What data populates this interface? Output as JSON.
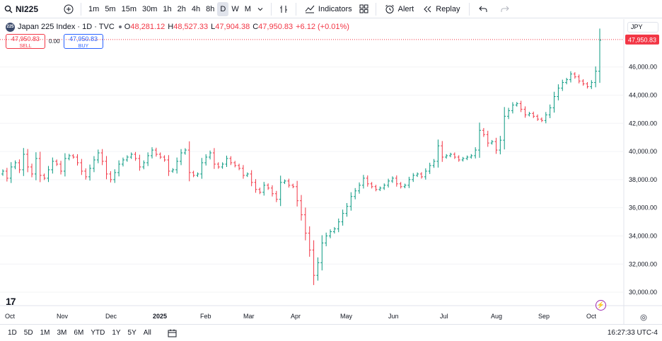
{
  "toolbar": {
    "symbol": "NI225",
    "intervals": [
      "1m",
      "5m",
      "15m",
      "30m",
      "1h",
      "2h",
      "4h",
      "8h",
      "D",
      "W",
      "M"
    ],
    "active_interval": "D",
    "indicators_label": "Indicators",
    "alert_label": "Alert",
    "replay_label": "Replay"
  },
  "legend": {
    "title": "Japan 225 Index · 1D · TVC",
    "logo": "225",
    "o_key": "O",
    "o_val": "48,281.12",
    "h_key": "H",
    "h_val": "48,527.33",
    "l_key": "L",
    "l_val": "47,904.38",
    "c_key": "C",
    "c_val": "47,950.83",
    "change": "+6.12 (+0.01%)"
  },
  "trade": {
    "sell_price": "47,950.83",
    "sell_label": "SELL",
    "buy_price": "47,950.83",
    "buy_label": "BUY",
    "spread": "0.00"
  },
  "currency": "JPY",
  "chart_data": {
    "type": "ohlc",
    "price_axis_labels": [
      "46,000.00",
      "44,000.00",
      "42,000.00",
      "40,000.00",
      "38,000.00",
      "36,000.00",
      "34,000.00",
      "32,000.00",
      "30,000.00"
    ],
    "current_price_label": "47,950.83",
    "current_price": 47950.83,
    "time_axis_labels": [
      "Oct",
      "Nov",
      "Dec",
      "2025",
      "Feb",
      "Mar",
      "Apr",
      "May",
      "Jun",
      "Jul",
      "Aug",
      "Sep",
      "Oct"
    ],
    "ylim": [
      29400,
      49000
    ],
    "approx_closes": [
      38600,
      38100,
      38900,
      39200,
      38700,
      39800,
      38900,
      38400,
      39500,
      38300,
      38100,
      38700,
      39300,
      39100,
      38600,
      39500,
      39700,
      39600,
      39200,
      38600,
      38200,
      38800,
      39400,
      39900,
      39300,
      38400,
      38000,
      38500,
      39100,
      39400,
      39600,
      39800,
      39500,
      38900,
      39200,
      39700,
      40100,
      39800,
      39600,
      39400,
      38600,
      38700,
      39300,
      39900,
      40100,
      38500,
      38300,
      38400,
      39200,
      39600,
      39900,
      39100,
      38900,
      39100,
      39500,
      39200,
      39000,
      38800,
      38300,
      38400,
      37800,
      37300,
      37100,
      37600,
      37400,
      37000,
      36600,
      37800,
      37900,
      37600,
      37500,
      36500,
      35500,
      34200,
      33000,
      31200,
      32100,
      33500,
      34000,
      34300,
      34500,
      35000,
      35600,
      36100,
      36800,
      37200,
      37600,
      38100,
      37700,
      37500,
      37300,
      37400,
      37600,
      37900,
      38100,
      37700,
      37500,
      37600,
      38000,
      38300,
      38400,
      38200,
      38600,
      39000,
      39300,
      40400,
      39600,
      39700,
      39800,
      39600,
      39400,
      39500,
      39600,
      39700,
      40100,
      41500,
      41200,
      40600,
      40700,
      40100,
      40800,
      42500,
      42900,
      43300,
      43400,
      43000,
      42600,
      42700,
      42500,
      42300,
      42200,
      42600,
      43100,
      43900,
      44500,
      44900,
      45100,
      45500,
      45300,
      45000,
      44800,
      44600,
      44900,
      45700,
      47900
    ]
  },
  "bottom": {
    "ranges": [
      "1D",
      "5D",
      "1M",
      "3M",
      "6M",
      "YTD",
      "1Y",
      "5Y",
      "All"
    ],
    "clock": "16:27:33 UTC-4"
  },
  "colors": {
    "up": "#089981",
    "down": "#f23645",
    "accent": "#2962ff"
  }
}
